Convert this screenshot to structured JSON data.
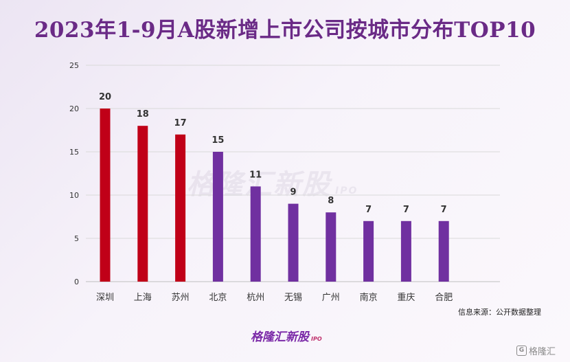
{
  "title": "2023年1-9月A股新增上市公司按城市分布TOP10",
  "source": "信息来源：公开数据整理",
  "watermark": "格隆汇新股",
  "watermark_suffix": "IPO",
  "bottom_logo": "格隆汇新股",
  "bottom_logo_suffix": "IPO",
  "corner_mark": "格隆汇",
  "corner_mark_icon": "G",
  "colors": {
    "red": "#c00018",
    "purple": "#7030a0",
    "title": "#6a2a86",
    "grid": "#d9d9d9"
  },
  "chart_data": {
    "type": "bar",
    "categories": [
      "深圳",
      "上海",
      "苏州",
      "北京",
      "杭州",
      "无锡",
      "广州",
      "南京",
      "重庆",
      "合肥"
    ],
    "values": [
      20,
      18,
      17,
      15,
      11,
      9,
      8,
      7,
      7,
      7
    ],
    "bar_colors": [
      "#c00018",
      "#c00018",
      "#c00018",
      "#7030a0",
      "#7030a0",
      "#7030a0",
      "#7030a0",
      "#7030a0",
      "#7030a0",
      "#7030a0"
    ],
    "yticks": [
      "0",
      "5",
      "10",
      "15",
      "20",
      "25"
    ],
    "ylim": [
      0,
      25
    ],
    "grid": true,
    "legend": "none"
  }
}
